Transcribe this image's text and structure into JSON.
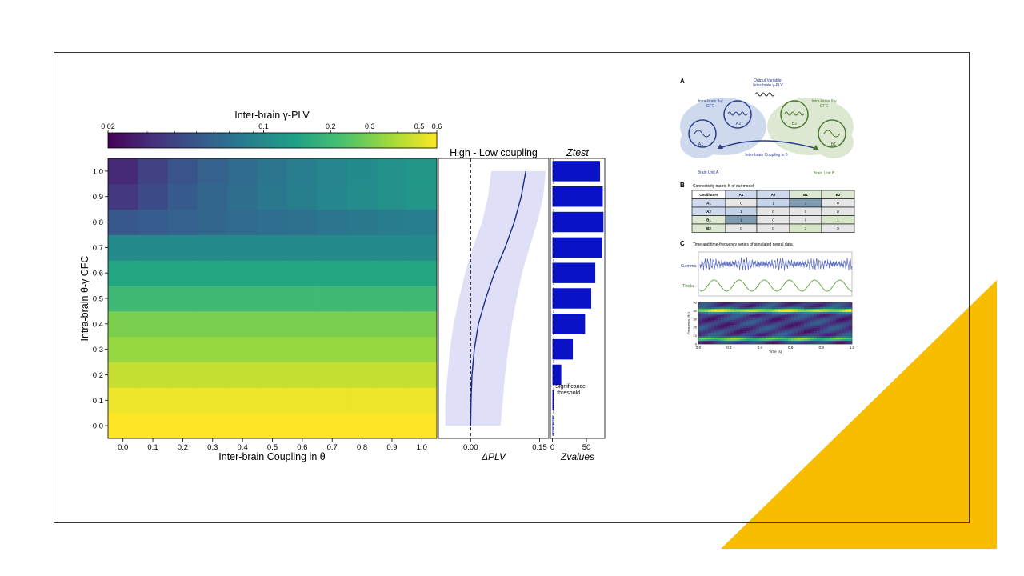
{
  "colors": {
    "accent": "#f9bd00",
    "bar": "#0a12c8",
    "band": "#dfe0f7",
    "line": "#1a2a8c",
    "viridis": [
      "#440154",
      "#46327e",
      "#365c8d",
      "#277f8e",
      "#1fa187",
      "#4ac16d",
      "#a0da39",
      "#fde725"
    ],
    "brain_a": "#cfd9ee",
    "brain_b": "#dde8d2",
    "blue_ink": "#2b3f8c",
    "green_ink": "#4b7a2a"
  },
  "chart_data": [
    {
      "type": "heatmap",
      "title": "Inter-brain γ-PLV",
      "xlabel": "Inter-brain Coupling in θ",
      "ylabel": "Intra-brain θ-γ CFC",
      "x_ticks": [
        "0.0",
        "0.1",
        "0.2",
        "0.3",
        "0.4",
        "0.5",
        "0.6",
        "0.7",
        "0.8",
        "0.9",
        "1.0"
      ],
      "y_ticks": [
        "0.0",
        "0.1",
        "0.2",
        "0.3",
        "0.4",
        "0.5",
        "0.6",
        "0.7",
        "0.8",
        "0.9",
        "1.0"
      ],
      "colorbar": {
        "scale": "log",
        "min": 0.02,
        "max": 0.6,
        "tick_labels": [
          "0.02",
          "0.1",
          "0.2",
          "0.3",
          "0.5",
          "0.6"
        ],
        "tick_values": [
          0.02,
          0.1,
          0.2,
          0.3,
          0.5,
          0.6
        ]
      },
      "row_base_values": [
        0.6,
        0.55,
        0.45,
        0.35,
        0.3,
        0.2,
        0.15,
        0.1,
        0.05,
        0.035,
        0.03
      ],
      "row_gain": [
        0,
        0,
        0,
        0,
        0,
        0,
        0,
        0,
        0.035,
        0.085,
        0.09
      ]
    },
    {
      "type": "line",
      "title": "High - Low coupling",
      "xlabel": "ΔPLV",
      "x_ticks": [
        "0.00",
        "0.15"
      ],
      "xlim": [
        -0.07,
        0.17
      ],
      "ylim": [
        -0.05,
        1.05
      ],
      "y": [
        0.0,
        0.1,
        0.2,
        0.3,
        0.4,
        0.5,
        0.6,
        0.7,
        0.8,
        0.9,
        1.0
      ],
      "mean": [
        0.0,
        0.001,
        0.003,
        0.008,
        0.017,
        0.033,
        0.052,
        0.075,
        0.095,
        0.11,
        0.12
      ],
      "lower": [
        -0.055,
        -0.055,
        -0.05,
        -0.045,
        -0.037,
        -0.025,
        -0.012,
        0.005,
        0.025,
        0.038,
        0.045
      ],
      "upper": [
        0.065,
        0.07,
        0.075,
        0.082,
        0.09,
        0.1,
        0.112,
        0.128,
        0.145,
        0.158,
        0.163
      ]
    },
    {
      "type": "bar",
      "orientation": "horizontal",
      "title": "Ztest",
      "xlabel": "Zvalues",
      "x_ticks": [
        "0",
        "50"
      ],
      "xlim": [
        -3,
        77
      ],
      "categories": [
        "0.0",
        "0.1",
        "0.2",
        "0.3",
        "0.4",
        "0.5",
        "0.6",
        "0.7",
        "0.8",
        "0.9",
        "1.0"
      ],
      "values": [
        0,
        2,
        13,
        30,
        48,
        57,
        63,
        73,
        75,
        74,
        70
      ],
      "threshold": 1.96,
      "annotation": "Significance\nthreshold"
    }
  ],
  "schematic": {
    "panel_a": {
      "label": "A",
      "output_title": "Output Variable:\nInter-brain γ-PLV",
      "intra_left": "Intra-brain θ-γ\nCFC",
      "intra_right": "Intra-brain θ-γ\nCFC",
      "coupling": "Inter-brain Coupling in θ",
      "unit_a": "Brain Unit A",
      "unit_b": "Brain Unit B",
      "nodes": [
        "A1",
        "A2",
        "B2",
        "B1"
      ]
    },
    "panel_b": {
      "label": "B",
      "caption": "Connectivity matrix K of our model",
      "header": [
        "Oscillators",
        "A1",
        "A2",
        "B1",
        "B2"
      ],
      "rows": [
        [
          "A1",
          "0",
          "1",
          "1",
          "0"
        ],
        [
          "A2",
          "1",
          "0",
          "0",
          "0"
        ],
        [
          "B1",
          "1",
          "0",
          "0",
          "1"
        ],
        [
          "B2",
          "0",
          "0",
          "1",
          "0"
        ]
      ]
    },
    "panel_c": {
      "label": "C",
      "caption": "Time and time-frequency series of simulated neural data",
      "gamma_label": "Gamma",
      "theta_label": "Theta",
      "y_axis_label": "Frequency (Hz)",
      "y_ticks": [
        "50",
        "40",
        "30",
        "20",
        "10",
        "0"
      ],
      "x_axis_label": "Time (s)",
      "x_ticks": [
        "0.0",
        "0.2",
        "0.4",
        "0.6",
        "0.8",
        "1.0"
      ]
    }
  }
}
